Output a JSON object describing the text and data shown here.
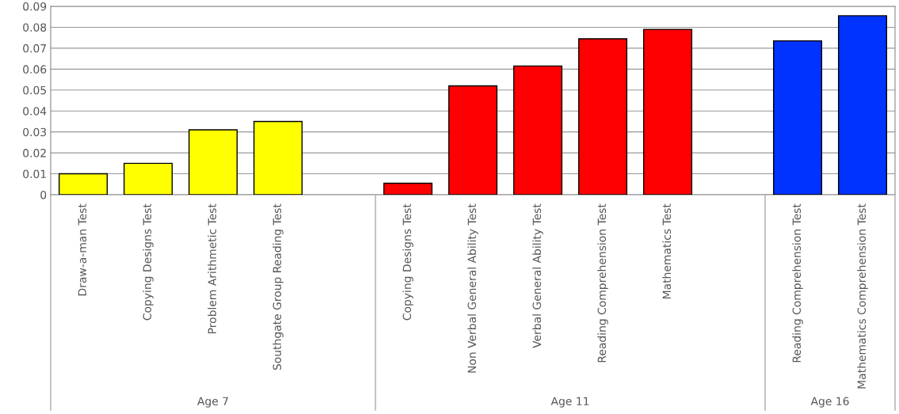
{
  "chart_data": {
    "type": "bar",
    "categories": [
      "Draw-a-man Test",
      "Copying Designs Test",
      "Problem Arithmetic Test",
      "Southgate Group Reading Test",
      null,
      "Copying Designs Test",
      "Non Verbal General Ability Test",
      "Verbal General Ability Test",
      "Reading Comprehension Test",
      "Mathematics Test",
      null,
      "Reading Comprehension Test",
      "Mathematics Comprehension Test"
    ],
    "values": [
      0.01,
      0.015,
      0.031,
      0.035,
      null,
      0.0055,
      0.052,
      0.0615,
      0.0745,
      0.079,
      null,
      0.0735,
      0.0855
    ],
    "colors": [
      "#ffff00",
      "#ffff00",
      "#ffff00",
      "#ffff00",
      null,
      "#ff0000",
      "#ff0000",
      "#ff0000",
      "#ff0000",
      "#ff0000",
      null,
      "#0033ff",
      "#0033ff"
    ],
    "annotations": [
      "Age 7",
      "Age 11",
      "Age 16"
    ],
    "ylim": [
      0,
      0.09
    ],
    "yticks": [
      0,
      0.01,
      0.02,
      0.03,
      0.04,
      0.05,
      0.06,
      0.07,
      0.08,
      0.09
    ],
    "grid": "y"
  }
}
